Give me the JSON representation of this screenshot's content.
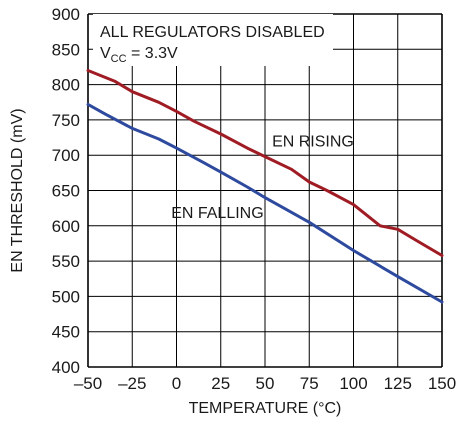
{
  "chart_data": {
    "type": "line",
    "title": "",
    "xlabel": "TEMPERATURE (°C)",
    "ylabel": "EN THRESHOLD (mV)",
    "xlim": [
      -50,
      150
    ],
    "ylim": [
      400,
      900
    ],
    "xticks": [
      -50,
      -25,
      0,
      25,
      50,
      75,
      100,
      125,
      150
    ],
    "yticks": [
      400,
      450,
      500,
      550,
      600,
      650,
      700,
      750,
      800,
      850,
      900
    ],
    "xtick_labels": [
      "–50",
      "–25",
      "0",
      "25",
      "50",
      "75",
      "100",
      "125",
      "150"
    ],
    "ytick_labels": [
      "400",
      "450",
      "500",
      "550",
      "600",
      "650",
      "700",
      "750",
      "800",
      "850",
      "900"
    ],
    "grid": true,
    "legend": "none",
    "annotations": {
      "condition_line1": "ALL REGULATORS DISABLED",
      "condition_line2_prefix": "V",
      "condition_line2_sub": "CC",
      "condition_line2_suffix": " = 3.3V"
    },
    "series": [
      {
        "label": "EN RISING",
        "color": "#a01c24",
        "x": [
          -50,
          -35,
          -25,
          -10,
          0,
          10,
          25,
          40,
          50,
          65,
          75,
          85,
          100,
          105,
          115,
          125,
          135,
          150
        ],
        "y": [
          820,
          805,
          790,
          775,
          762,
          748,
          730,
          710,
          698,
          680,
          662,
          650,
          630,
          620,
          600,
          595,
          580,
          558
        ]
      },
      {
        "label": "EN FALLING",
        "color": "#2e4a9e",
        "x": [
          -50,
          -40,
          -25,
          -10,
          0,
          15,
          25,
          40,
          50,
          75,
          100,
          125,
          150
        ],
        "y": [
          772,
          758,
          738,
          723,
          710,
          690,
          676,
          655,
          640,
          605,
          565,
          528,
          492
        ]
      }
    ]
  }
}
